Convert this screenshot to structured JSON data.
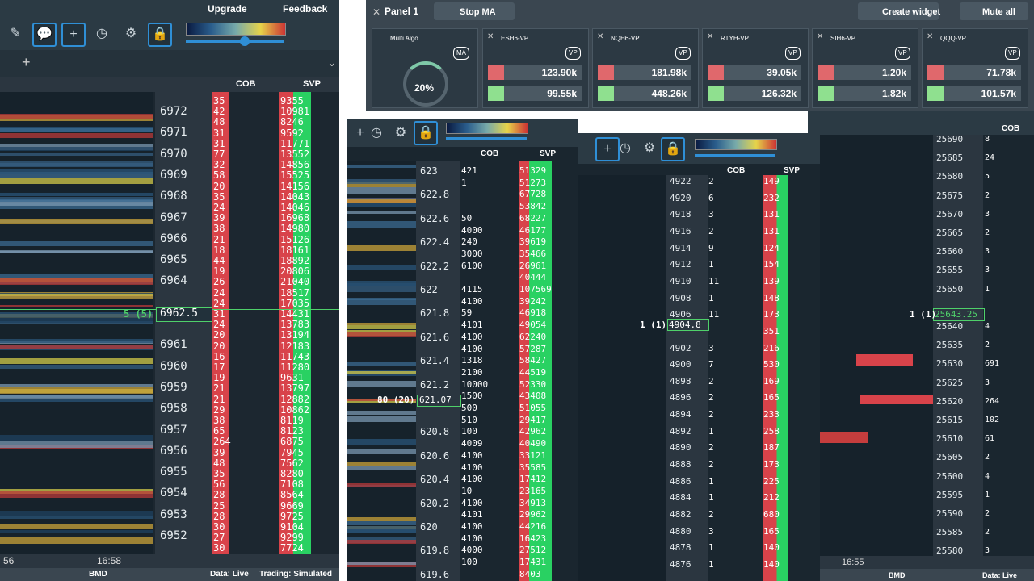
{
  "left_panel": {
    "toolbar": {
      "upgrade": "Upgrade",
      "feedback": "Feedback"
    },
    "headers": [
      "COB",
      "SVP"
    ],
    "prices": [
      "6972",
      "6971",
      "6970",
      "6969",
      "6968",
      "6967",
      "6966",
      "6965",
      "6964",
      null,
      null,
      "6961",
      "6960",
      "6959",
      "6958",
      "6957",
      "6956",
      "6955",
      "6954",
      "6953",
      "6952"
    ],
    "last_price": "6962.5",
    "trade_marker": "5 (5)",
    "cob": [
      "35",
      "42",
      "48",
      "31",
      "31",
      "77",
      "32",
      "58",
      "20",
      "35",
      "24",
      "39",
      "38",
      "21",
      "18",
      "44",
      "19",
      "26",
      "24",
      "24",
      "31",
      "24",
      "20",
      "20",
      "16",
      "17",
      "19",
      "21",
      "21",
      "29",
      "38",
      "65",
      "264",
      "39",
      "48",
      "35",
      "56",
      "28",
      "25",
      "28",
      "30",
      "27",
      "30"
    ],
    "svp": [
      "9355",
      "10981",
      "8246",
      "9592",
      "11771",
      "13552",
      "14856",
      "15525",
      "14156",
      "14043",
      "14046",
      "16968",
      "14980",
      "15126",
      "18161",
      "18892",
      "20806",
      "21040",
      "18517",
      "17035",
      "14431",
      "13783",
      "13194",
      "12183",
      "11743",
      "11280",
      "9631",
      "13797",
      "12882",
      "10862",
      "8119",
      "8123",
      "6875",
      "7945",
      "7562",
      "8280",
      "7108",
      "8564",
      "9669",
      "9725",
      "9104",
      "9299",
      "7724"
    ],
    "times": [
      "56",
      "16:58"
    ],
    "status": {
      "feed": "BMD",
      "data": "Data: Live",
      "trading": "Trading: Simulated"
    }
  },
  "widget_bar": {
    "panel": "Panel 1",
    "stop": "Stop MA",
    "create": "Create widget",
    "mute": "Mute all",
    "algo": {
      "name": "Multi Algo",
      "badge": "MA",
      "gauge": "20%"
    },
    "widgets": [
      {
        "name": "ESH6-VP",
        "badge": "VP",
        "buy": "123.90k",
        "sell": "99.55k"
      },
      {
        "name": "NQH6-VP",
        "badge": "VP",
        "buy": "181.98k",
        "sell": "448.26k"
      },
      {
        "name": "RTYH-VP",
        "badge": "VP",
        "buy": "39.05k",
        "sell": "126.32k"
      },
      {
        "name": "SIH6-VP",
        "badge": "VP",
        "buy": "1.20k",
        "sell": "1.82k"
      },
      {
        "name": "QQQ-VP",
        "badge": "VP",
        "buy": "71.78k",
        "sell": "101.57k"
      }
    ]
  },
  "middle_panel": {
    "headers": [
      "COB",
      "SVP"
    ],
    "prices": [
      "623",
      "622.8",
      "622.6",
      "622.4",
      "622.2",
      "622",
      "621.8",
      "621.6",
      "621.4",
      "621.2",
      null,
      "620.8",
      "620.6",
      "620.4",
      "620.2",
      "620",
      "619.8",
      "619.6"
    ],
    "last_price": "621.07",
    "trade_marker": "80 (20)",
    "cob": [
      "421",
      "1",
      null,
      null,
      "50",
      "4000",
      "240",
      "3000",
      "6100",
      null,
      "4115",
      "4100",
      "59",
      "4101",
      "4100",
      "4100",
      "1318",
      "2100",
      "10000",
      "1500",
      "500",
      "510",
      "100",
      "4009",
      "4100",
      "4100",
      "4100",
      "10",
      "4100",
      "4101",
      "4100",
      "4100",
      "4000",
      "100",
      null
    ],
    "svp": [
      "51329",
      "51273",
      "67728",
      "53842",
      "68227",
      "46177",
      "39619",
      "35466",
      "26961",
      "40444",
      "107569",
      "39242",
      "46918",
      "49054",
      "62240",
      "57287",
      "58427",
      "44519",
      "52330",
      "43408",
      "51055",
      "29417",
      "42962",
      "40490",
      "33121",
      "35585",
      "17412",
      "23165",
      "34913",
      "29962",
      "44216",
      "16423",
      "27512",
      "17431",
      "8403"
    ]
  },
  "center_panel": {
    "headers": [
      "COB",
      "SVP"
    ],
    "prices": [
      "4922",
      "4920",
      "4918",
      "4916",
      "4914",
      "4912",
      "4910",
      "4908",
      "4906",
      null,
      "4902",
      "4900",
      "4898",
      "4896",
      "4894",
      "4892",
      "4890",
      "4888",
      "4886",
      "4884",
      "4882",
      "4880",
      "4878",
      "4876"
    ],
    "last_price": "4904.8",
    "trade_marker": "1 (1)",
    "cob": [
      "2",
      "6",
      "3",
      "2",
      "9",
      "1",
      "11",
      "1",
      "11",
      null,
      "3",
      "7",
      "2",
      "2",
      "2",
      "1",
      "2",
      "2",
      "1",
      "1",
      "2",
      "3",
      "1",
      "1"
    ],
    "svp": [
      "149",
      "232",
      "131",
      "131",
      "124",
      "154",
      "139",
      "148",
      "173",
      "351",
      "216",
      "530",
      "169",
      "165",
      "233",
      "258",
      "187",
      "173",
      "225",
      "212",
      "680",
      "165",
      "140",
      "140"
    ]
  },
  "right_panel": {
    "headers": [
      "COB"
    ],
    "prices": [
      "25690",
      "25685",
      "25680",
      "25675",
      "25670",
      "25665",
      "25660",
      "25655",
      "25650",
      null,
      "25640",
      "25635",
      "25630",
      "25625",
      "25620",
      "25615",
      "25610",
      "25605",
      "25600",
      "25595",
      "25590",
      "25585",
      "25580"
    ],
    "last_price": "25643.25",
    "trade_marker": "1 (1)",
    "cob": [
      "8",
      "24",
      "5",
      "2",
      "3",
      "2",
      "3",
      "3",
      "1",
      null,
      "4",
      "2",
      "691",
      "3",
      "264",
      "102",
      "61",
      "2",
      "4",
      "1",
      "2",
      "2",
      "3"
    ],
    "times": [
      "16:55"
    ],
    "status": {
      "feed": "BMD",
      "data": "Data: Live"
    }
  }
}
